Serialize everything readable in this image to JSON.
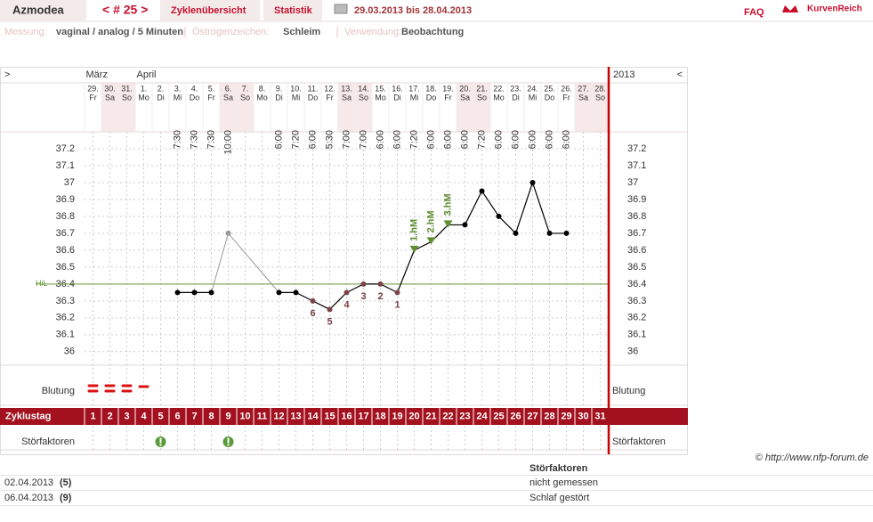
{
  "header": {
    "user": "Azmodea",
    "cycle_nav": "< # 25 >",
    "tabs": [
      "Zyklenübersicht",
      "Statistik"
    ],
    "period": "29.03.2013 bis 28.04.2013",
    "faq": "FAQ",
    "logo": "KurvenReich"
  },
  "settings": [
    {
      "label": "Messung:",
      "value": "vaginal / analog / 5 Minuten"
    },
    {
      "label": "Östrogenzeichen:",
      "value": "Schleim"
    },
    {
      "label": "Verwendung:",
      "value": "Beobachtung"
    }
  ],
  "chart_data": {
    "type": "line",
    "nav_left": ">",
    "nav_right": "<",
    "year": "2013",
    "months": [
      "März",
      null,
      null,
      "April",
      null,
      null,
      null,
      null,
      null,
      null,
      null,
      null,
      null,
      null,
      null,
      null,
      null,
      null,
      null,
      null,
      null,
      null,
      null,
      null,
      null,
      null,
      null,
      null,
      null,
      null,
      null
    ],
    "dates": [
      "29.",
      "30.",
      "31.",
      "1.",
      "2.",
      "3.",
      "4.",
      "5.",
      "6.",
      "7.",
      "8.",
      "9.",
      "10.",
      "11.",
      "12.",
      "13.",
      "14.",
      "15.",
      "16.",
      "17.",
      "18.",
      "19.",
      "20.",
      "21.",
      "22.",
      "23.",
      "24.",
      "25.",
      "26.",
      "27.",
      "28."
    ],
    "weekdays": [
      "Fr",
      "Sa",
      "So",
      "Mo",
      "Di",
      "Mi",
      "Do",
      "Fr",
      "Sa",
      "So",
      "Mo",
      "Di",
      "Mi",
      "Do",
      "Fr",
      "Sa",
      "So",
      "Mo",
      "Di",
      "Mi",
      "Do",
      "Fr",
      "Sa",
      "So",
      "Mo",
      "Di",
      "Mi",
      "Do",
      "Fr",
      "Sa",
      "So"
    ],
    "times": [
      null,
      null,
      null,
      null,
      null,
      "7:30",
      "7:30",
      "7:30",
      "10:00",
      null,
      null,
      "6:00",
      "7:20",
      "6:00",
      "5:30",
      "7:00",
      "7:00",
      "6:00",
      "6:00",
      "7:20",
      "6:00",
      "6:00",
      "6:00",
      "7:20",
      "6:00",
      "6:00",
      "6:00",
      "6:00",
      "6:00",
      null,
      null
    ],
    "values": [
      null,
      null,
      null,
      null,
      null,
      36.35,
      36.35,
      36.35,
      36.7,
      null,
      null,
      36.35,
      36.35,
      36.3,
      36.25,
      36.35,
      36.4,
      36.4,
      36.35,
      36.6,
      36.65,
      36.75,
      36.75,
      36.95,
      36.8,
      36.7,
      37.0,
      36.7,
      36.7,
      null,
      null
    ],
    "color": "#000000",
    "excluded": [
      8
    ],
    "excluded_color": "#999999",
    "low_labels": [
      null,
      null,
      null,
      null,
      null,
      null,
      null,
      null,
      null,
      null,
      null,
      null,
      null,
      6,
      5,
      4,
      3,
      2,
      1,
      null,
      null,
      null,
      null,
      null,
      null,
      null,
      null,
      null,
      null,
      null,
      null
    ],
    "low_color": "#7a4448",
    "hm_labels": [
      null,
      null,
      null,
      null,
      null,
      null,
      null,
      null,
      null,
      null,
      null,
      null,
      null,
      null,
      null,
      null,
      null,
      null,
      null,
      "1.hM",
      "2.hM",
      "3.hM",
      null,
      null,
      null,
      null,
      null,
      null,
      null,
      null,
      null
    ],
    "hm_color": "#5e8f32",
    "hil": 36.4,
    "hil_label": "HiL",
    "hil_color": "#6a9a3a",
    "ylim": [
      35.92,
      37.3
    ],
    "yticks": [
      36,
      36.1,
      36.2,
      36.3,
      36.4,
      36.5,
      36.6,
      36.7,
      36.8,
      36.9,
      37,
      37.1,
      37.2
    ],
    "grid": true,
    "bleeding_label": "Blutung",
    "bleeding": [
      2,
      2,
      2,
      1,
      null,
      null,
      null,
      null,
      null,
      null,
      null,
      null,
      null,
      null,
      null,
      null,
      null,
      null,
      null,
      null,
      null,
      null,
      null,
      null,
      null,
      null,
      null,
      null,
      null,
      null,
      null
    ],
    "cycle_label": "Zyklustag",
    "cycle_days": [
      1,
      2,
      3,
      4,
      5,
      6,
      7,
      8,
      9,
      10,
      11,
      12,
      13,
      14,
      15,
      16,
      17,
      18,
      19,
      20,
      21,
      22,
      23,
      24,
      25,
      26,
      27,
      28,
      29,
      30,
      31
    ],
    "disturb_label": "Störfaktoren",
    "disturb_days": [
      5,
      9
    ]
  },
  "copyright": "© http://www.nfp-forum.de",
  "table": {
    "title": "Störfaktoren",
    "rows": [
      [
        "02.04.2013",
        "(5)",
        "nicht gemessen"
      ],
      [
        "06.04.2013",
        "(9)",
        "Schlaf gestört"
      ]
    ]
  }
}
